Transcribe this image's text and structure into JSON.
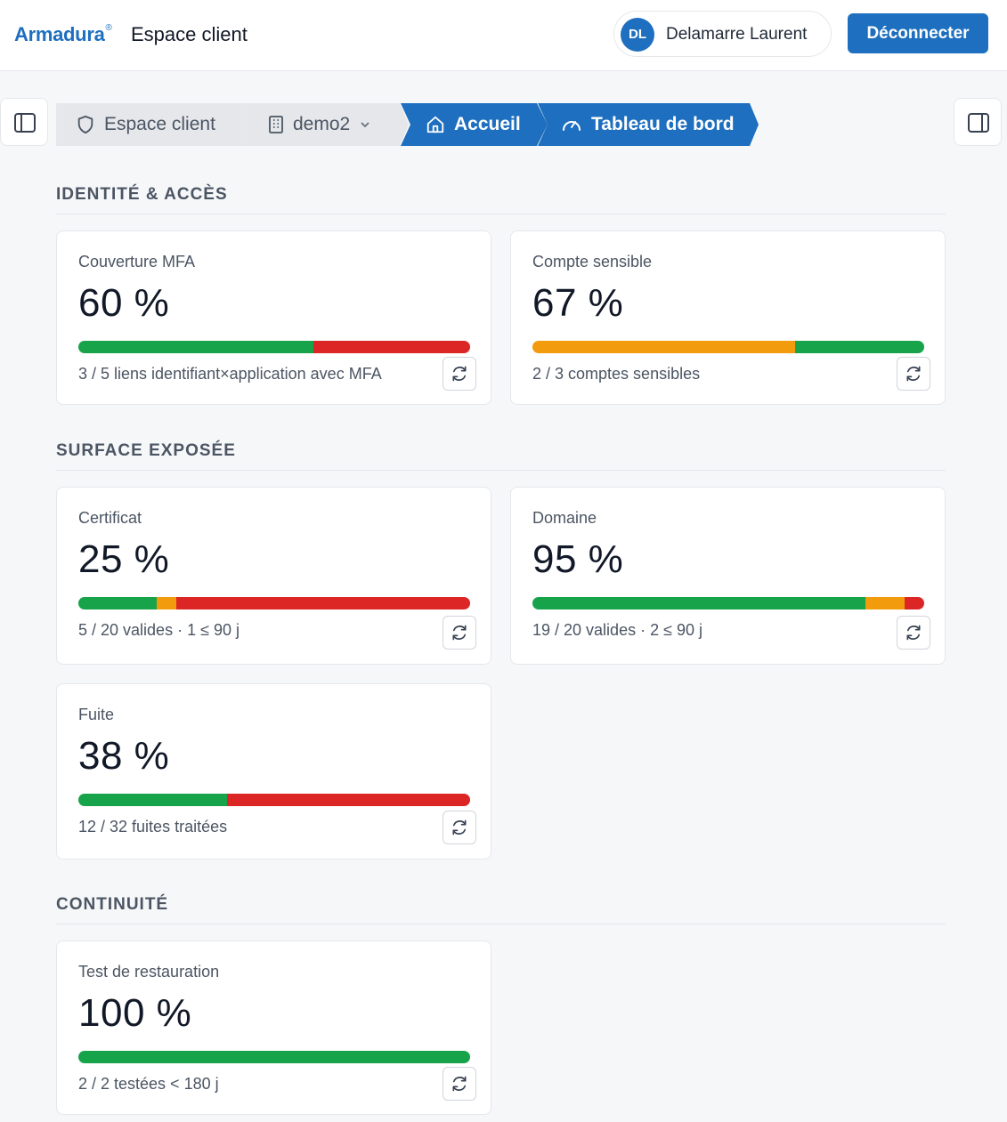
{
  "header": {
    "brand": "Armadura",
    "brand_mark": "®",
    "title": "Espace client",
    "user": {
      "initials": "DL",
      "name": "Delamarre Laurent"
    },
    "logout_label": "Déconnecter"
  },
  "icons": {
    "left_toggle": "sidebar-left-icon",
    "right_toggle": "sidebar-right-icon",
    "refresh": "refresh-icon"
  },
  "breadcrumb": [
    {
      "label": "Espace client",
      "icon": "shield-icon",
      "active": false
    },
    {
      "label": "demo2",
      "icon": "building-icon",
      "active": false,
      "dropdown": true
    },
    {
      "label": "Accueil",
      "icon": "home-icon",
      "active": true
    },
    {
      "label": "Tableau de bord",
      "icon": "gauge-icon",
      "active": true
    }
  ],
  "colors": {
    "green": "#17a34a",
    "orange": "#f29b0c",
    "red": "#dc2626",
    "accent": "#1e6fbf",
    "crumb_inactive": "#e5e7eb"
  },
  "sections": [
    {
      "title": "IDENTITÉ & ACCÈS",
      "cards": [
        {
          "label": "Couverture MFA",
          "value": "60 %",
          "detail": "3 / 5 liens identifiant×application avec MFA",
          "segments": [
            {
              "color": "green",
              "fraction": 0.6
            },
            {
              "color": "red",
              "fraction": 0.4
            }
          ]
        },
        {
          "label": "Compte sensible",
          "value": "67 %",
          "detail": "2 / 3 comptes sensibles",
          "segments": [
            {
              "color": "orange",
              "fraction": 0.67
            },
            {
              "color": "green",
              "fraction": 0.33
            }
          ]
        }
      ]
    },
    {
      "title": "SURFACE EXPOSÉE",
      "cards": [
        {
          "label": "Certificat",
          "value": "25 %",
          "detail": "5 / 20 valides · 1 ≤ 90 j",
          "segments": [
            {
              "color": "green",
              "fraction": 0.2
            },
            {
              "color": "orange",
              "fraction": 0.05
            },
            {
              "color": "red",
              "fraction": 0.75
            }
          ]
        },
        {
          "label": "Domaine",
          "value": "95 %",
          "detail": "19 / 20 valides · 2 ≤ 90 j",
          "segments": [
            {
              "color": "green",
              "fraction": 0.85
            },
            {
              "color": "orange",
              "fraction": 0.1
            },
            {
              "color": "red",
              "fraction": 0.05
            }
          ]
        },
        {
          "label": "Fuite",
          "value": "38 %",
          "detail": "12 / 32 fuites traitées",
          "segments": [
            {
              "color": "green",
              "fraction": 0.38
            },
            {
              "color": "red",
              "fraction": 0.62
            }
          ]
        }
      ]
    },
    {
      "title": "CONTINUITÉ",
      "cards": [
        {
          "label": "Test de restauration",
          "value": "100 %",
          "detail": "2 / 2 testées < 180 j",
          "segments": [
            {
              "color": "green",
              "fraction": 1.0
            }
          ]
        }
      ]
    }
  ]
}
